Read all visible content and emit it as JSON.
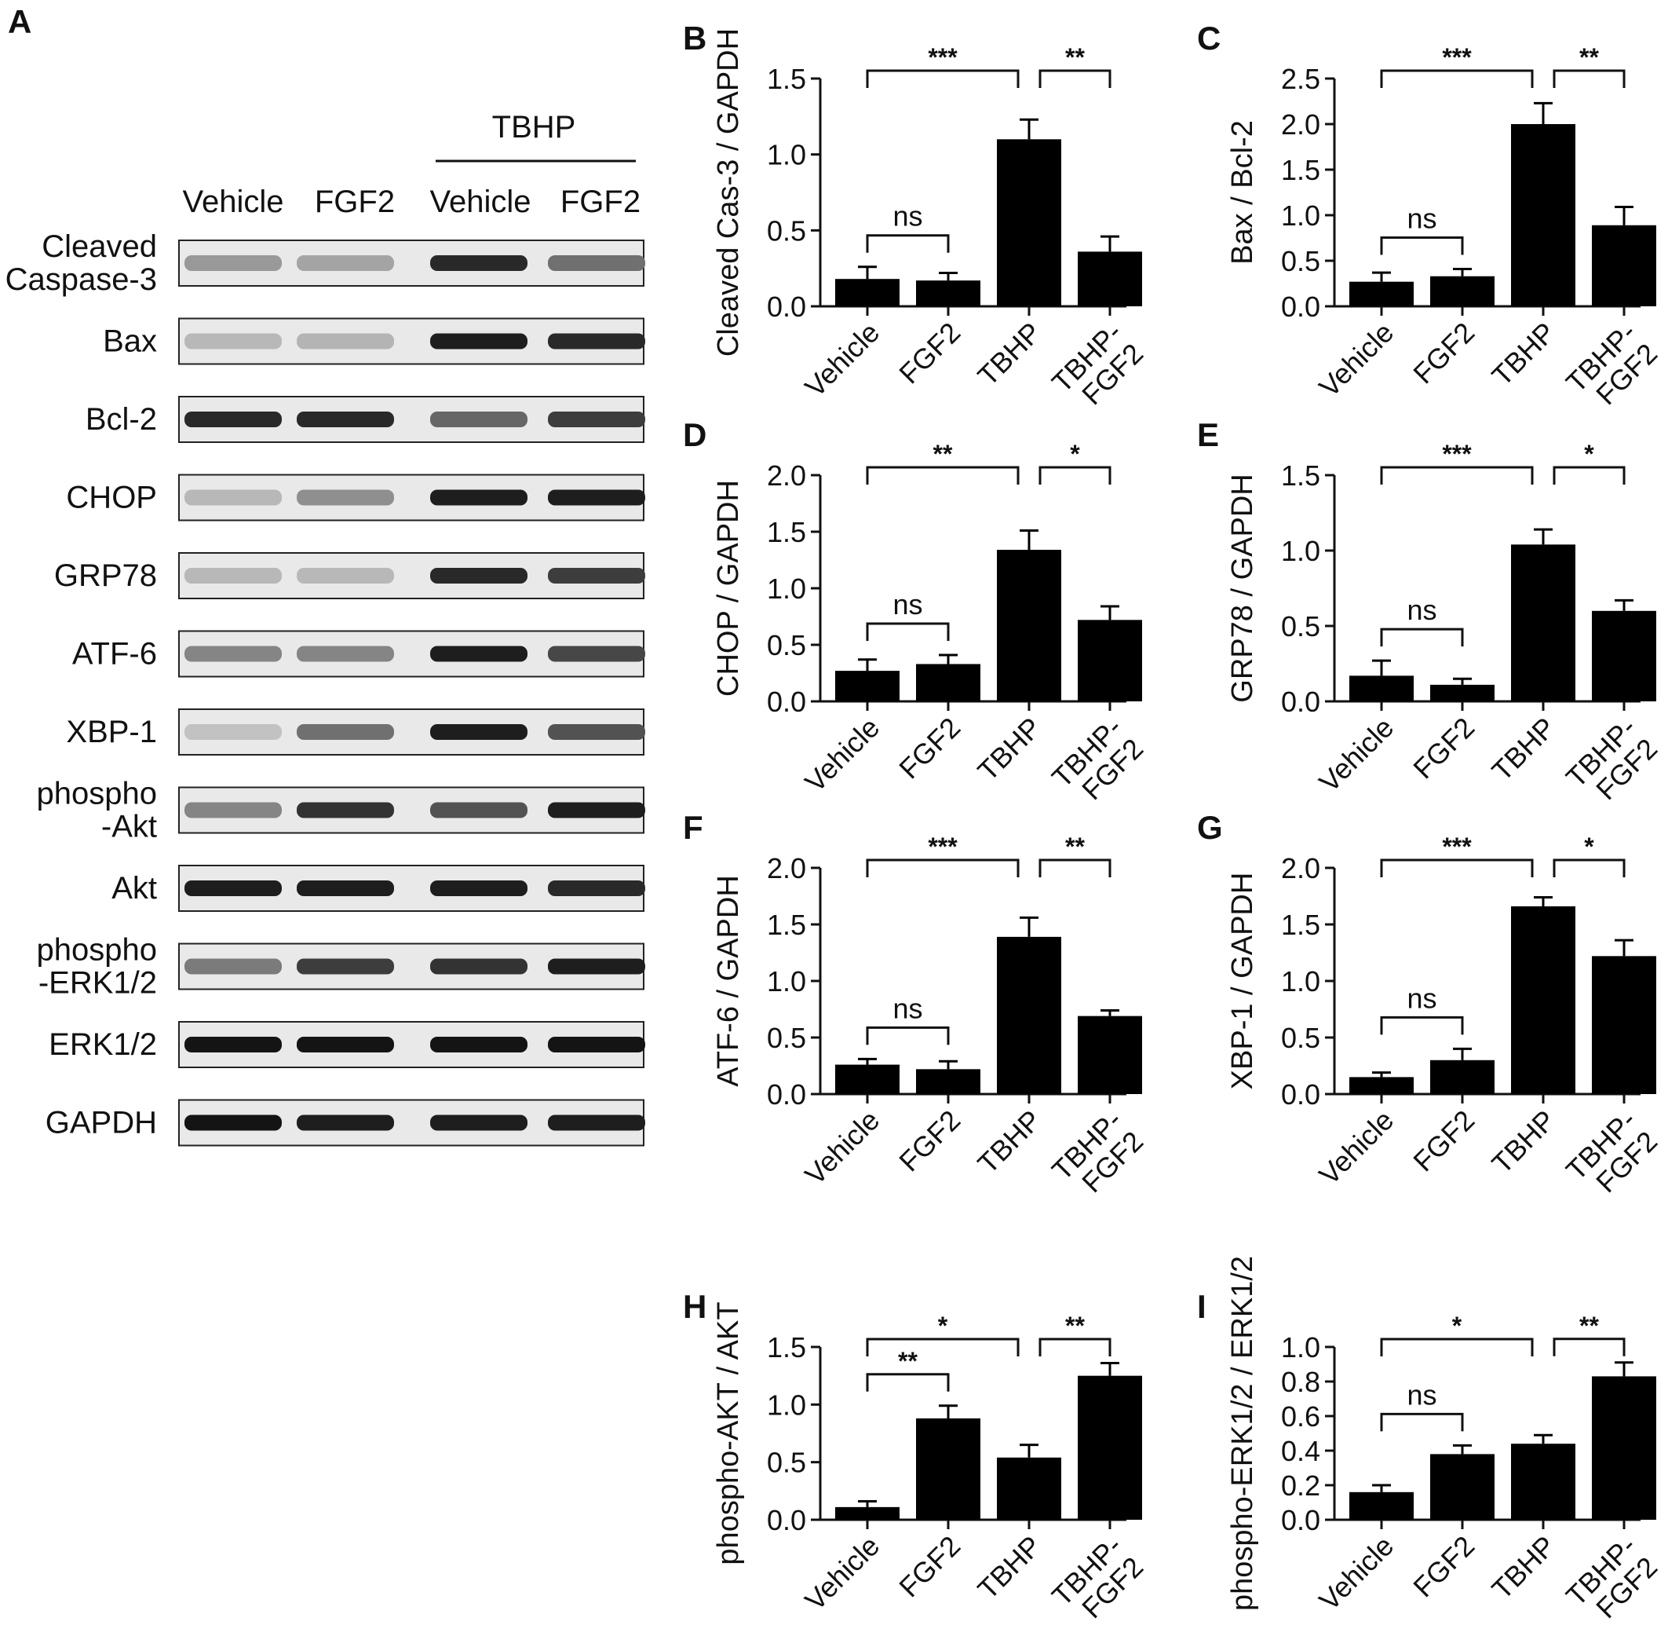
{
  "panel_a": {
    "letter": "A",
    "group_label": "TBHP",
    "lane_labels": [
      "Vehicle",
      "FGF2",
      "Vehicle",
      "FGF2"
    ],
    "blots": [
      {
        "label": [
          "Cleaved",
          "Caspase-3"
        ],
        "intensity": [
          0.35,
          0.3,
          0.9,
          0.55
        ]
      },
      {
        "label": [
          "Bax"
        ],
        "intensity": [
          0.2,
          0.22,
          0.95,
          0.9
        ]
      },
      {
        "label": [
          "Bcl-2"
        ],
        "intensity": [
          0.9,
          0.9,
          0.6,
          0.8
        ]
      },
      {
        "label": [
          "CHOP"
        ],
        "intensity": [
          0.2,
          0.4,
          0.95,
          0.95
        ]
      },
      {
        "label": [
          "GRP78"
        ],
        "intensity": [
          0.2,
          0.2,
          0.9,
          0.8
        ]
      },
      {
        "label": [
          "ATF-6"
        ],
        "intensity": [
          0.45,
          0.45,
          0.95,
          0.75
        ]
      },
      {
        "label": [
          "XBP-1"
        ],
        "intensity": [
          0.15,
          0.55,
          0.95,
          0.7
        ]
      },
      {
        "label": [
          "phospho",
          "-Akt"
        ],
        "intensity": [
          0.45,
          0.85,
          0.7,
          0.95
        ]
      },
      {
        "label": [
          "Akt"
        ],
        "intensity": [
          0.95,
          0.95,
          0.95,
          0.9
        ]
      },
      {
        "label": [
          "phospho",
          "-ERK1/2"
        ],
        "intensity": [
          0.5,
          0.8,
          0.85,
          0.95
        ]
      },
      {
        "label": [
          "ERK1/2"
        ],
        "intensity": [
          1,
          1,
          1,
          1
        ]
      },
      {
        "label": [
          "GAPDH"
        ],
        "intensity": [
          1,
          0.95,
          0.95,
          0.95
        ]
      }
    ]
  },
  "chart_data": [
    {
      "letter": "B",
      "type": "bar",
      "ylabel": "Cleaved Cas-3 / GAPDH",
      "categories": [
        "Vehicle",
        "FGF2",
        "TBHP",
        "TBHP-FGF2"
      ],
      "values": [
        0.18,
        0.17,
        1.1,
        0.36
      ],
      "errors": [
        0.08,
        0.05,
        0.13,
        0.1
      ],
      "ylim": [
        0,
        1.5
      ],
      "yticks": [
        "0.0",
        "0.5",
        "1.0",
        "1.5"
      ],
      "annotations": [
        {
          "from": 0,
          "to": 1,
          "label": "ns"
        },
        {
          "from": 0,
          "to": 2,
          "label": "***"
        },
        {
          "from": 2,
          "to": 3,
          "label": "**"
        }
      ]
    },
    {
      "letter": "C",
      "type": "bar",
      "ylabel": "Bax / Bcl-2",
      "categories": [
        "Vehicle",
        "FGF2",
        "TBHP",
        "TBHP-FGF2"
      ],
      "values": [
        0.27,
        0.33,
        2.0,
        0.89
      ],
      "errors": [
        0.1,
        0.08,
        0.23,
        0.2
      ],
      "ylim": [
        0,
        2.5
      ],
      "yticks": [
        "0.0",
        "0.5",
        "1.0",
        "1.5",
        "2.0",
        "2.5"
      ],
      "annotations": [
        {
          "from": 0,
          "to": 1,
          "label": "ns"
        },
        {
          "from": 0,
          "to": 2,
          "label": "***"
        },
        {
          "from": 2,
          "to": 3,
          "label": "**"
        }
      ]
    },
    {
      "letter": "D",
      "type": "bar",
      "ylabel": "CHOP / GAPDH",
      "categories": [
        "Vehicle",
        "FGF2",
        "TBHP",
        "TBHP-FGF2"
      ],
      "values": [
        0.27,
        0.33,
        1.34,
        0.72
      ],
      "errors": [
        0.1,
        0.08,
        0.17,
        0.12
      ],
      "ylim": [
        0,
        2.0
      ],
      "yticks": [
        "0.0",
        "0.5",
        "1.0",
        "1.5",
        "2.0"
      ],
      "annotations": [
        {
          "from": 0,
          "to": 1,
          "label": "ns"
        },
        {
          "from": 0,
          "to": 2,
          "label": "**"
        },
        {
          "from": 2,
          "to": 3,
          "label": "*"
        }
      ]
    },
    {
      "letter": "E",
      "type": "bar",
      "ylabel": "GRP78 / GAPDH",
      "categories": [
        "Vehicle",
        "FGF2",
        "TBHP",
        "TBHP-FGF2"
      ],
      "values": [
        0.17,
        0.11,
        1.04,
        0.6
      ],
      "errors": [
        0.1,
        0.04,
        0.1,
        0.07
      ],
      "ylim": [
        0,
        1.5
      ],
      "yticks": [
        "0.0",
        "0.5",
        "1.0",
        "1.5"
      ],
      "annotations": [
        {
          "from": 0,
          "to": 1,
          "label": "ns"
        },
        {
          "from": 0,
          "to": 2,
          "label": "***"
        },
        {
          "from": 2,
          "to": 3,
          "label": "*"
        }
      ]
    },
    {
      "letter": "F",
      "type": "bar",
      "ylabel": "ATF-6 / GAPDH",
      "categories": [
        "Vehicle",
        "FGF2",
        "TBHP",
        "TBHP-FGF2"
      ],
      "values": [
        0.26,
        0.22,
        1.39,
        0.69
      ],
      "errors": [
        0.05,
        0.07,
        0.17,
        0.05
      ],
      "ylim": [
        0,
        2.0
      ],
      "yticks": [
        "0.0",
        "0.5",
        "1.0",
        "1.5",
        "2.0"
      ],
      "annotations": [
        {
          "from": 0,
          "to": 1,
          "label": "ns"
        },
        {
          "from": 0,
          "to": 2,
          "label": "***"
        },
        {
          "from": 2,
          "to": 3,
          "label": "**"
        }
      ]
    },
    {
      "letter": "G",
      "type": "bar",
      "ylabel": "XBP-1 / GAPDH",
      "categories": [
        "Vehicle",
        "FGF2",
        "TBHP",
        "TBHP-FGF2"
      ],
      "values": [
        0.15,
        0.3,
        1.66,
        1.22
      ],
      "errors": [
        0.04,
        0.1,
        0.08,
        0.14
      ],
      "ylim": [
        0,
        2.0
      ],
      "yticks": [
        "0.0",
        "0.5",
        "1.0",
        "1.5",
        "2.0"
      ],
      "annotations": [
        {
          "from": 0,
          "to": 1,
          "label": "ns"
        },
        {
          "from": 0,
          "to": 2,
          "label": "***"
        },
        {
          "from": 2,
          "to": 3,
          "label": "*"
        }
      ]
    },
    {
      "letter": "H",
      "type": "bar",
      "ylabel": "phospho-AKT / AKT",
      "categories": [
        "Vehicle",
        "FGF2",
        "TBHP",
        "TBHP-FGF2"
      ],
      "values": [
        0.11,
        0.88,
        0.54,
        1.25
      ],
      "errors": [
        0.05,
        0.11,
        0.11,
        0.11
      ],
      "ylim": [
        0,
        1.5
      ],
      "yticks": [
        "0.0",
        "0.5",
        "1.0",
        "1.5"
      ],
      "annotations": [
        {
          "from": 0,
          "to": 1,
          "label": "**"
        },
        {
          "from": 0,
          "to": 2,
          "label": "*"
        },
        {
          "from": 2,
          "to": 3,
          "label": "**"
        }
      ]
    },
    {
      "letter": "I",
      "type": "bar",
      "ylabel": "phospho-ERK1/2 / ERK1/2",
      "categories": [
        "Vehicle",
        "FGF2",
        "TBHP",
        "TBHP-FGF2"
      ],
      "values": [
        0.16,
        0.38,
        0.44,
        0.83
      ],
      "errors": [
        0.04,
        0.05,
        0.05,
        0.08
      ],
      "ylim": [
        0,
        1.0
      ],
      "yticks": [
        "0.0",
        "0.2",
        "0.4",
        "0.6",
        "0.8",
        "1.0"
      ],
      "annotations": [
        {
          "from": 0,
          "to": 1,
          "label": "ns"
        },
        {
          "from": 0,
          "to": 2,
          "label": "*"
        },
        {
          "from": 2,
          "to": 3,
          "label": "**"
        }
      ]
    }
  ]
}
